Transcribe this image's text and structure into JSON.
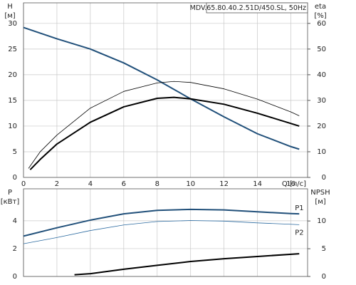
{
  "chart_data": [
    {
      "type": "line",
      "title": "MDV.65.80.40.2.51D/450.SL, 50Hz",
      "ylabel": [
        "H",
        "[м]"
      ],
      "y2label": [
        "eta",
        "[%]"
      ],
      "xlabel": "Q [л/с]",
      "xlim": [
        0,
        17
      ],
      "xticks": [
        0,
        2,
        4,
        6,
        8,
        10,
        12,
        14,
        16
      ],
      "ylim": [
        0,
        34
      ],
      "yticks": [
        0,
        5,
        10,
        15,
        20,
        25,
        30
      ],
      "y2lim": [
        0,
        68
      ],
      "y2ticks": [
        0,
        10,
        20,
        30,
        40,
        50,
        60
      ],
      "grid": true,
      "series": [
        {
          "color": "#21507a",
          "width": 2,
          "x": [
            0,
            2,
            4,
            6,
            8,
            10,
            12,
            14,
            16,
            16.5
          ],
          "values": [
            29.2,
            27,
            25,
            22.3,
            19,
            15.3,
            11.8,
            8.5,
            6,
            5.5
          ]
        },
        {
          "color": "#000000",
          "width": 2,
          "axis": "y2",
          "x": [
            0.4,
            1,
            2,
            4,
            6,
            8,
            9,
            10,
            12,
            14,
            16,
            16.5
          ],
          "values": [
            3,
            7,
            13,
            21.5,
            27.5,
            30.8,
            31.2,
            30.6,
            28.5,
            25,
            21,
            20
          ]
        },
        {
          "color": "#000000",
          "width": 0.8,
          "axis": "y2",
          "x": [
            0.3,
            1,
            2,
            4,
            6,
            8,
            9,
            10,
            12,
            14,
            16,
            16.5
          ],
          "values": [
            3.5,
            10,
            16.5,
            27,
            33.5,
            36.8,
            37.4,
            37,
            34.5,
            30.5,
            25.5,
            24
          ]
        }
      ]
    },
    {
      "type": "line",
      "ylabel": [
        "P",
        "[кВт]"
      ],
      "y2label": [
        "NPSH",
        "[м]"
      ],
      "xlim": [
        0,
        17
      ],
      "xticks": [
        0,
        2,
        4,
        6,
        8,
        10,
        12,
        14,
        16
      ],
      "ylim": [
        0,
        6.3
      ],
      "yticks": [
        0,
        2,
        4
      ],
      "y2lim": [
        0,
        15.8
      ],
      "y2ticks": [
        0,
        5,
        10
      ],
      "grid": true,
      "series": [
        {
          "name": "P1",
          "color": "#21507a",
          "width": 2,
          "x": [
            0,
            2,
            4,
            6,
            8,
            10,
            12,
            14,
            16,
            16.5
          ],
          "values": [
            2.9,
            3.5,
            4.05,
            4.5,
            4.75,
            4.82,
            4.78,
            4.65,
            4.52,
            4.5
          ]
        },
        {
          "name": "P2",
          "color": "#2b6aa0",
          "width": 0.8,
          "x": [
            0,
            2,
            4,
            6,
            8,
            10,
            12,
            14,
            16,
            16.5
          ],
          "values": [
            2.35,
            2.8,
            3.3,
            3.7,
            3.95,
            4.02,
            3.98,
            3.85,
            3.75,
            3.72
          ]
        },
        {
          "color": "#000000",
          "width": 2,
          "axis": "y2",
          "x": [
            3.05,
            4,
            6,
            8,
            10,
            12,
            14,
            16.5
          ],
          "values": [
            0.3,
            0.5,
            1.3,
            2,
            2.7,
            3.2,
            3.6,
            4.1
          ]
        }
      ]
    }
  ]
}
